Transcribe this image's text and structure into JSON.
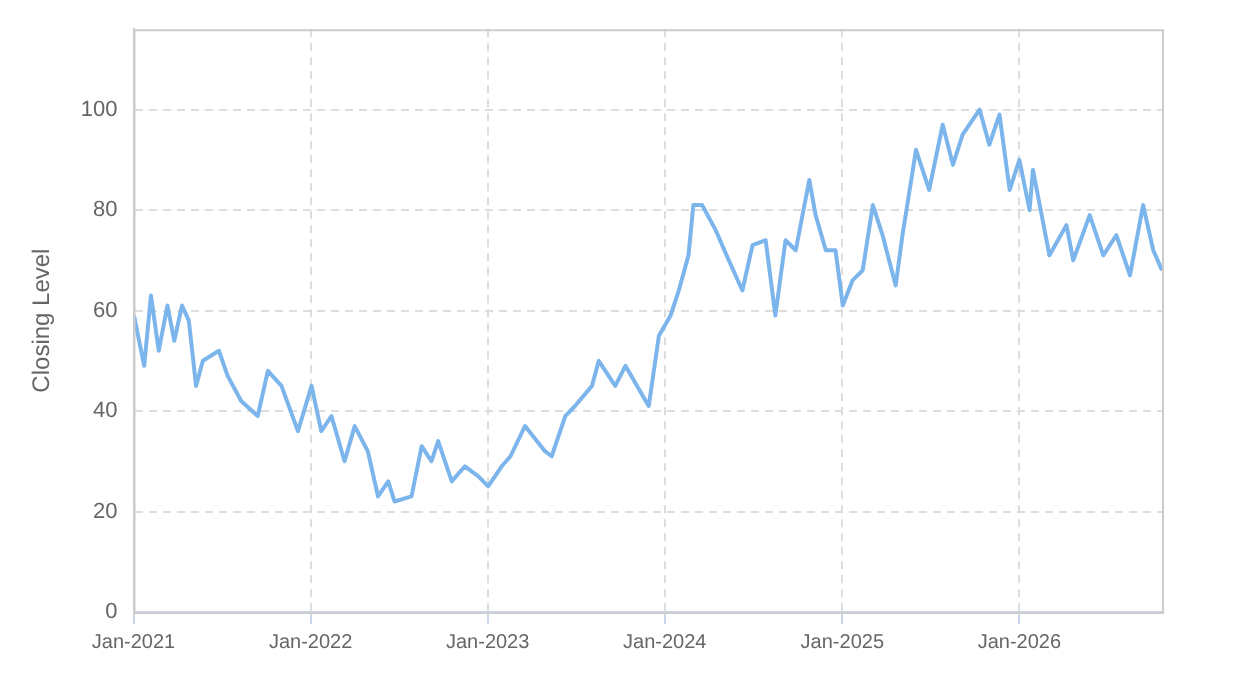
{
  "chart_data": {
    "type": "line",
    "ylabel": "Closing Level",
    "xlim": [
      "2021-01-01",
      "2026-10-22"
    ],
    "ylim": [
      0,
      116
    ],
    "yticks": [
      0,
      20,
      40,
      60,
      80,
      100
    ],
    "xticks": [
      {
        "value": "2021-01-01",
        "label": "Jan-2021"
      },
      {
        "value": "2022-01-01",
        "label": "Jan-2022"
      },
      {
        "value": "2023-01-01",
        "label": "Jan-2023"
      },
      {
        "value": "2024-01-01",
        "label": "Jan-2024"
      },
      {
        "value": "2025-01-01",
        "label": "Jan-2025"
      },
      {
        "value": "2026-01-01",
        "label": "Jan-2026"
      }
    ],
    "grid": true,
    "legend": false,
    "marker": "none",
    "line_style": "solid",
    "x": [
      "2021-01-02",
      "2021-01-23",
      "2021-02-06",
      "2021-02-22",
      "2021-03-12",
      "2021-03-26",
      "2021-04-11",
      "2021-04-25",
      "2021-05-10",
      "2021-05-24",
      "2021-06-26",
      "2021-07-14",
      "2021-08-11",
      "2021-09-14",
      "2021-10-05",
      "2021-11-02",
      "2021-12-06",
      "2022-01-03",
      "2022-01-23",
      "2022-02-13",
      "2022-03-12",
      "2022-04-02",
      "2022-04-29",
      "2022-05-20",
      "2022-06-10",
      "2022-06-23",
      "2022-07-28",
      "2022-08-18",
      "2022-09-07",
      "2022-09-21",
      "2022-10-19",
      "2022-11-15",
      "2022-12-13",
      "2023-01-02",
      "2023-01-30",
      "2023-02-17",
      "2023-03-19",
      "2023-04-29",
      "2023-05-13",
      "2023-06-10",
      "2023-06-30",
      "2023-08-04",
      "2023-08-18",
      "2023-09-21",
      "2023-10-12",
      "2023-11-05",
      "2023-11-29",
      "2023-12-20",
      "2024-01-13",
      "2024-01-30",
      "2024-02-19",
      "2024-02-29",
      "2024-03-18",
      "2024-04-15",
      "2024-05-12",
      "2024-06-09",
      "2024-06-30",
      "2024-07-27",
      "2024-08-16",
      "2024-09-06",
      "2024-09-27",
      "2024-10-25",
      "2024-11-07",
      "2024-11-28",
      "2024-12-18",
      "2025-01-02",
      "2025-01-22",
      "2025-02-12",
      "2025-03-05",
      "2025-03-25",
      "2025-04-21",
      "2025-05-05",
      "2025-06-02",
      "2025-06-29",
      "2025-07-27",
      "2025-08-17",
      "2025-09-06",
      "2025-10-11",
      "2025-10-31",
      "2025-11-21",
      "2025-12-12",
      "2026-01-01",
      "2026-01-22",
      "2026-01-29",
      "2026-03-04",
      "2026-04-08",
      "2026-04-22",
      "2026-05-26",
      "2026-06-23",
      "2026-07-20",
      "2026-08-17",
      "2026-09-13",
      "2026-10-04",
      "2026-10-22"
    ],
    "series": [
      {
        "color": "#7cb5ec",
        "values": [
          59,
          49,
          63,
          52,
          61,
          54,
          61,
          58,
          45,
          50,
          52,
          47,
          42,
          39,
          48,
          45,
          36,
          45,
          36,
          39,
          30,
          37,
          32,
          23,
          26,
          22,
          23,
          33,
          30,
          34,
          26,
          29,
          27,
          25,
          29,
          31,
          37,
          32,
          31,
          39,
          41,
          45,
          50,
          45,
          49,
          45,
          41,
          55,
          59,
          64,
          71,
          81,
          81,
          76,
          70,
          64,
          73,
          74,
          59,
          74,
          72,
          86,
          79,
          72,
          72,
          61,
          66,
          68,
          81,
          75,
          65,
          75,
          92,
          84,
          97,
          89,
          95,
          100,
          93,
          99,
          84,
          90,
          80,
          88,
          71,
          77,
          70,
          79,
          71,
          75,
          67,
          81,
          72,
          68
        ]
      }
    ]
  }
}
